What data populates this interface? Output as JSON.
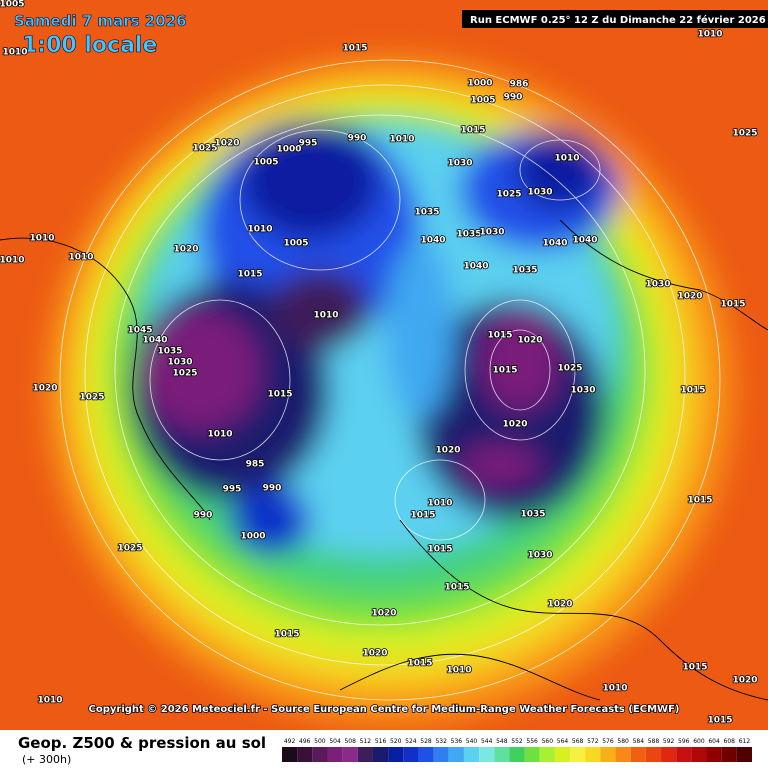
{
  "header": {
    "date": "Samedi 7 mars 2026",
    "time": "1:00 locale",
    "run": "Run ECMWF 0.25° 12 Z du Dimanche 22 février 2026"
  },
  "copyright": "Copyright © 2026 Meteociel.fr - Source European Centre for Medium-Range Weather Forecasts (ECMWF)",
  "footer": {
    "title": "Geop. Z500 & pression au sol",
    "lead": "(+ 300h)"
  },
  "colorbar": {
    "values": [
      492,
      496,
      500,
      504,
      508,
      512,
      516,
      520,
      524,
      528,
      532,
      536,
      540,
      544,
      548,
      552,
      556,
      560,
      564,
      568,
      572,
      576,
      580,
      584,
      588,
      592,
      596,
      600,
      604,
      608,
      612
    ],
    "colors": [
      "#1a0a1a",
      "#3a0f3a",
      "#5a1a5a",
      "#7a1f7a",
      "#8a2a8a",
      "#3c1f5a",
      "#1a1a6e",
      "#0a1ea0",
      "#1030c8",
      "#2050e8",
      "#2f7ff0",
      "#40a8f0",
      "#5cd0f0",
      "#7ae8e0",
      "#60e0a0",
      "#40d060",
      "#70e040",
      "#a8f030",
      "#d8f020",
      "#f8f040",
      "#f8d820",
      "#f8b018",
      "#f88818",
      "#f06010",
      "#e84810",
      "#e02810",
      "#c81010",
      "#b00808",
      "#900000",
      "#700000",
      "#500000"
    ]
  },
  "isobar_labels": [
    "1015",
    "1010",
    "1000",
    "986",
    "1005",
    "990",
    "1015",
    "990",
    "1010",
    "995",
    "1000",
    "1025",
    "1020",
    "1005",
    "1025",
    "1010",
    "1030",
    "1025",
    "1030",
    "1035",
    "1040",
    "1035",
    "1030",
    "1040",
    "1040",
    "1040",
    "1035",
    "1010",
    "1005",
    "1020",
    "1010",
    "1010",
    "1015",
    "1010",
    "1045",
    "1040",
    "1035",
    "1030",
    "1025",
    "1020",
    "1025",
    "1015",
    "1010",
    "1015",
    "1020",
    "1015",
    "1025",
    "1030",
    "1020",
    "1020",
    "985",
    "995",
    "990",
    "990",
    "1000",
    "1010",
    "1015",
    "1035",
    "1025",
    "1030",
    "1015",
    "1015",
    "1020",
    "1015",
    "1020",
    "1015",
    "1010",
    "1020",
    "1010",
    "1010",
    "1015",
    "1020",
    "1015",
    "1015",
    "1015",
    "1030",
    "1020",
    "1015",
    "1010",
    "1005",
    "1010"
  ]
}
